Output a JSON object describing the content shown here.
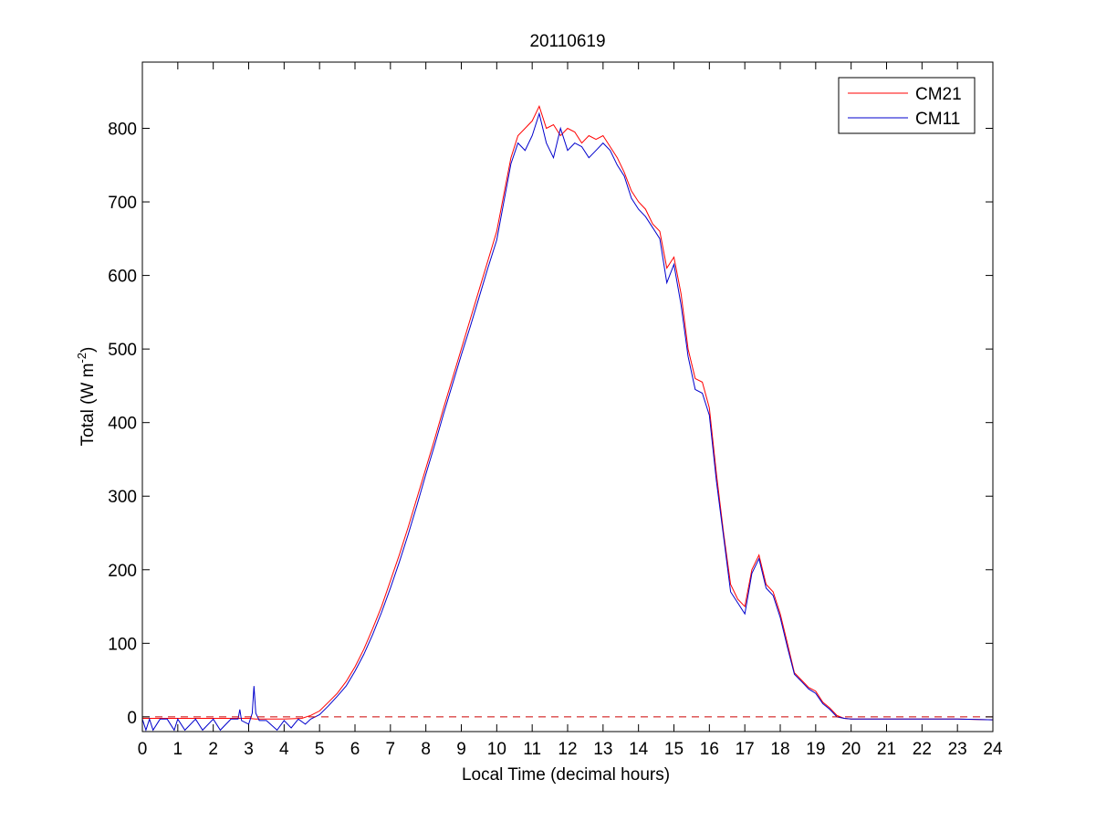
{
  "chart_data": {
    "type": "line",
    "title": "20110619",
    "xlabel": "Local Time (decimal hours)",
    "ylabel": {
      "prefix": "Total (W m",
      "superscript": "-2",
      "suffix": ")"
    },
    "xlim": [
      0,
      24
    ],
    "ylim": [
      -20,
      890
    ],
    "xticks": [
      0,
      1,
      2,
      3,
      4,
      5,
      6,
      7,
      8,
      9,
      10,
      11,
      12,
      13,
      14,
      15,
      16,
      17,
      18,
      19,
      20,
      21,
      22,
      23,
      24
    ],
    "yticks": [
      0,
      100,
      200,
      300,
      400,
      500,
      600,
      700,
      800
    ],
    "grid": false,
    "legend_position": "top-right",
    "zero_reference_line": {
      "y": 0,
      "style": "dashed",
      "color": "#cc0000"
    },
    "series": [
      {
        "name": "CM21",
        "color": "#ff0000",
        "x": [
          0,
          0.5,
          1,
          1.5,
          2,
          2.5,
          3,
          3.2,
          3.5,
          4,
          4.5,
          4.75,
          5,
          5.25,
          5.5,
          5.75,
          6,
          6.25,
          6.5,
          6.75,
          7,
          7.25,
          7.5,
          7.75,
          8,
          8.25,
          8.5,
          8.75,
          9,
          9.25,
          9.5,
          9.75,
          10,
          10.2,
          10.4,
          10.6,
          10.8,
          11,
          11.2,
          11.4,
          11.6,
          11.8,
          12,
          12.2,
          12.4,
          12.6,
          12.8,
          13,
          13.2,
          13.4,
          13.6,
          13.8,
          14,
          14.2,
          14.4,
          14.6,
          14.8,
          15,
          15.2,
          15.4,
          15.6,
          15.8,
          16,
          16.2,
          16.4,
          16.6,
          16.8,
          17,
          17.2,
          17.4,
          17.6,
          17.8,
          18,
          18.2,
          18.4,
          18.6,
          18.8,
          19,
          19.2,
          19.4,
          19.6,
          19.8,
          20,
          21,
          22,
          23,
          24
        ],
        "y": [
          -2,
          -2,
          -2,
          -2,
          -2,
          -2,
          -2,
          -3,
          -3,
          -3,
          -2,
          2,
          8,
          20,
          32,
          48,
          68,
          92,
          120,
          150,
          185,
          220,
          258,
          298,
          338,
          378,
          420,
          460,
          500,
          540,
          580,
          620,
          660,
          710,
          760,
          790,
          800,
          810,
          830,
          800,
          805,
          790,
          800,
          795,
          780,
          790,
          785,
          790,
          775,
          760,
          740,
          715,
          700,
          690,
          670,
          660,
          610,
          625,
          575,
          500,
          460,
          455,
          420,
          330,
          250,
          180,
          160,
          150,
          200,
          220,
          180,
          170,
          140,
          100,
          60,
          50,
          40,
          35,
          20,
          12,
          2,
          -2,
          -3,
          -3,
          -3,
          -3,
          -4
        ]
      },
      {
        "name": "CM11",
        "color": "#0000cc",
        "x": [
          0,
          0.1,
          0.2,
          0.3,
          0.5,
          0.7,
          0.9,
          1.0,
          1.2,
          1.5,
          1.7,
          2.0,
          2.2,
          2.5,
          2.7,
          2.75,
          2.8,
          3.0,
          3.1,
          3.15,
          3.2,
          3.3,
          3.5,
          3.8,
          4.0,
          4.2,
          4.4,
          4.6,
          4.75,
          5,
          5.25,
          5.5,
          5.75,
          6,
          6.25,
          6.5,
          6.75,
          7,
          7.25,
          7.5,
          7.75,
          8,
          8.25,
          8.5,
          8.75,
          9,
          9.25,
          9.5,
          9.75,
          10,
          10.2,
          10.4,
          10.6,
          10.8,
          11,
          11.2,
          11.4,
          11.6,
          11.8,
          12,
          12.2,
          12.4,
          12.6,
          12.8,
          13,
          13.2,
          13.4,
          13.6,
          13.8,
          14,
          14.2,
          14.4,
          14.6,
          14.8,
          15,
          15.2,
          15.4,
          15.6,
          15.8,
          16,
          16.2,
          16.4,
          16.6,
          16.8,
          17,
          17.2,
          17.4,
          17.6,
          17.8,
          18,
          18.2,
          18.4,
          18.6,
          18.8,
          19,
          19.2,
          19.4,
          19.6,
          19.8,
          20,
          21,
          22,
          23,
          24
        ],
        "y": [
          -3,
          -18,
          -3,
          -18,
          -3,
          -3,
          -18,
          -3,
          -18,
          -3,
          -18,
          -3,
          -18,
          -3,
          -3,
          10,
          -5,
          -10,
          5,
          42,
          5,
          -5,
          -5,
          -18,
          -5,
          -15,
          -3,
          -10,
          -3,
          3,
          15,
          28,
          42,
          62,
          85,
          112,
          142,
          175,
          210,
          248,
          288,
          330,
          370,
          412,
          452,
          492,
          530,
          570,
          610,
          648,
          700,
          752,
          780,
          770,
          790,
          820,
          780,
          760,
          800,
          770,
          780,
          775,
          760,
          770,
          780,
          770,
          750,
          735,
          705,
          690,
          680,
          665,
          650,
          590,
          615,
          560,
          490,
          445,
          440,
          410,
          320,
          245,
          170,
          155,
          140,
          195,
          215,
          175,
          165,
          135,
          95,
          58,
          48,
          38,
          32,
          18,
          10,
          0,
          -2,
          -3,
          -3,
          -3,
          -3,
          -4
        ]
      }
    ]
  }
}
